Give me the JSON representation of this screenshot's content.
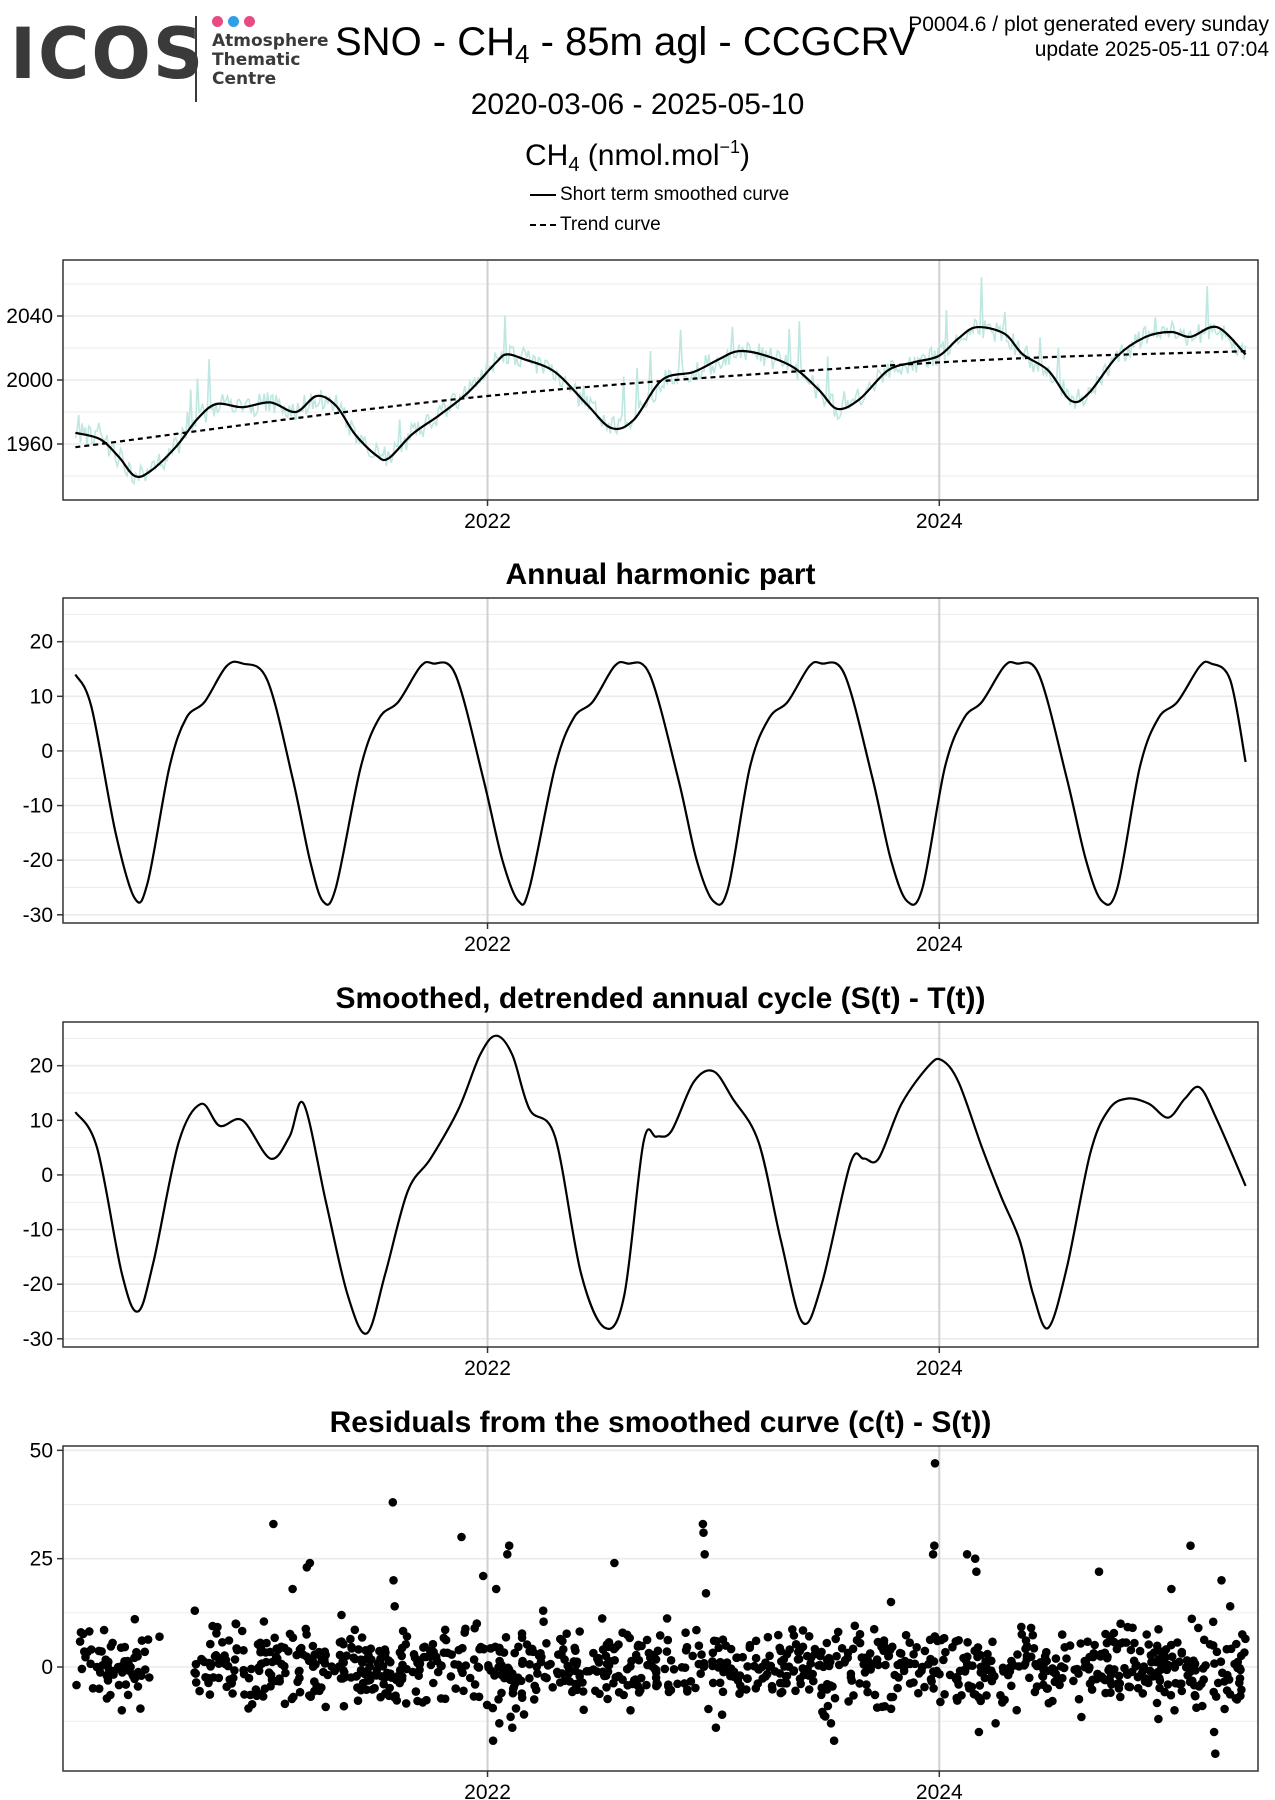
{
  "header": {
    "logo": {
      "word": "ICOS",
      "lines": [
        "Atmosphere",
        "Thematic",
        "Centre"
      ],
      "dot_colors": [
        "#e84a86",
        "#2f9fe8",
        "#e84a86"
      ]
    },
    "title_prefix": "SNO - CH",
    "title_sub": "4",
    "title_suffix": " - 85m agl - CCGCRV",
    "meta_line1": "P0004.6 / plot generated every sunday",
    "meta_line2": "update  2025-05-11 07:04",
    "date_range": "2020-03-06 - 2025-05-10",
    "ylabel_prefix": "CH",
    "ylabel_sub": "4",
    "ylabel_mid": " (nmol.mol",
    "ylabel_sup": "−1",
    "ylabel_end": ")",
    "legend": [
      {
        "label": "Short term smoothed curve",
        "style": "solid"
      },
      {
        "label": "Trend curve",
        "style": "dashed"
      }
    ]
  },
  "colors": {
    "observations": "#bde7e0",
    "curve": "#000000",
    "grid": "#ebebeb",
    "year_line": "#d0d0d0"
  },
  "chart_data": [
    {
      "type": "line",
      "title": "",
      "x_type": "date",
      "xlim": [
        "2020-02-15",
        "2025-05-30"
      ],
      "ylim": [
        1925,
        2075
      ],
      "yticks": [
        1960,
        2000,
        2040
      ],
      "xticks": [
        "2022-01-01",
        "2024-01-01"
      ],
      "xtick_labels": [
        "2022",
        "2024"
      ],
      "observation_band": true,
      "series": [
        {
          "name": "Short term smoothed curve",
          "style": "solid",
          "points": [
            [
              "2020-03-06",
              1967
            ],
            [
              "2020-04-15",
              1963
            ],
            [
              "2020-05-15",
              1952
            ],
            [
              "2020-06-10",
              1940
            ],
            [
              "2020-07-05",
              1943
            ],
            [
              "2020-08-15",
              1958
            ],
            [
              "2020-09-20",
              1976
            ],
            [
              "2020-10-20",
              1985
            ],
            [
              "2020-12-01",
              1983
            ],
            [
              "2021-01-15",
              1986
            ],
            [
              "2021-02-25",
              1980
            ],
            [
              "2021-03-31",
              1990
            ],
            [
              "2021-05-01",
              1984
            ],
            [
              "2021-06-01",
              1966
            ],
            [
              "2021-07-05",
              1953
            ],
            [
              "2021-07-25",
              1951
            ],
            [
              "2021-09-01",
              1966
            ],
            [
              "2021-10-15",
              1978
            ],
            [
              "2021-11-30",
              1992
            ],
            [
              "2022-01-15",
              2011
            ],
            [
              "2022-02-01",
              2016
            ],
            [
              "2022-03-01",
              2013
            ],
            [
              "2022-04-20",
              2005
            ],
            [
              "2022-06-10",
              1985
            ],
            [
              "2022-07-20",
              1970
            ],
            [
              "2022-08-25",
              1975
            ],
            [
              "2022-10-10",
              2000
            ],
            [
              "2022-11-30",
              2005
            ],
            [
              "2023-01-10",
              2013
            ],
            [
              "2023-02-10",
              2018
            ],
            [
              "2023-03-20",
              2016
            ],
            [
              "2023-05-10",
              2008
            ],
            [
              "2023-06-20",
              1994
            ],
            [
              "2023-07-20",
              1982
            ],
            [
              "2023-08-25",
              1988
            ],
            [
              "2023-10-10",
              2006
            ],
            [
              "2023-11-20",
              2011
            ],
            [
              "2023-12-31",
              2015
            ],
            [
              "2024-02-01",
              2026
            ],
            [
              "2024-03-01",
              2033
            ],
            [
              "2024-04-15",
              2029
            ],
            [
              "2024-05-15",
              2016
            ],
            [
              "2024-06-25",
              2006
            ],
            [
              "2024-08-01",
              1987
            ],
            [
              "2024-08-30",
              1992
            ],
            [
              "2024-10-15",
              2015
            ],
            [
              "2024-11-30",
              2027
            ],
            [
              "2025-01-10",
              2030
            ],
            [
              "2025-02-10",
              2027
            ],
            [
              "2025-03-25",
              2033
            ],
            [
              "2025-05-10",
              2016
            ]
          ]
        },
        {
          "name": "Trend curve",
          "style": "dashed",
          "points": [
            [
              "2020-03-06",
              1958
            ],
            [
              "2022-01-01",
              1990
            ],
            [
              "2024-01-01",
              2011
            ],
            [
              "2025-05-10",
              2018
            ]
          ]
        }
      ]
    },
    {
      "type": "line",
      "title": "Annual harmonic part",
      "x_type": "date",
      "xlim": [
        "2020-02-15",
        "2025-05-30"
      ],
      "ylim": [
        -31.5,
        28
      ],
      "yticks": [
        -30,
        -20,
        -10,
        0,
        10,
        20
      ],
      "xticks": [
        "2022-01-01",
        "2024-01-01"
      ],
      "xtick_labels": [
        "2022",
        "2024"
      ],
      "series": [
        {
          "style": "solid",
          "points": [
            [
              "2020-03-06",
              14
            ],
            [
              "2020-04-01",
              8
            ],
            [
              "2020-05-10",
              -15
            ],
            [
              "2020-06-10",
              -27
            ],
            [
              "2020-07-01",
              -24
            ],
            [
              "2020-08-05",
              -3
            ],
            [
              "2020-09-01",
              6
            ],
            [
              "2020-10-01",
              9
            ],
            [
              "2020-11-05",
              15.5
            ],
            [
              "2020-12-01",
              16
            ],
            [
              "2021-01-10",
              13
            ],
            [
              "2021-02-20",
              -5
            ],
            [
              "2021-03-20",
              -20
            ],
            [
              "2021-04-10",
              -27.5
            ],
            [
              "2021-05-01",
              -25
            ],
            [
              "2021-06-10",
              -3
            ],
            [
              "2021-07-10",
              6
            ],
            [
              "2021-08-10",
              9
            ],
            [
              "2021-09-15",
              15.5
            ],
            [
              "2021-10-05",
              16
            ],
            [
              "2021-11-10",
              14
            ],
            [
              "2021-12-25",
              -5
            ],
            [
              "2022-01-25",
              -20
            ],
            [
              "2022-02-20",
              -27.5
            ],
            [
              "2022-03-10",
              -25
            ],
            [
              "2022-04-20",
              -3
            ],
            [
              "2022-05-20",
              6
            ],
            [
              "2022-06-20",
              9
            ],
            [
              "2022-07-25",
              15.5
            ],
            [
              "2022-08-15",
              16
            ],
            [
              "2022-09-20",
              14
            ],
            [
              "2022-11-05",
              -5
            ],
            [
              "2022-12-05",
              -20
            ],
            [
              "2023-01-01",
              -27.5
            ],
            [
              "2023-01-25",
              -25
            ],
            [
              "2023-03-01",
              -3
            ],
            [
              "2023-04-01",
              6
            ],
            [
              "2023-05-01",
              9
            ],
            [
              "2023-06-05",
              15.5
            ],
            [
              "2023-06-25",
              16
            ],
            [
              "2023-08-01",
              14
            ],
            [
              "2023-09-15",
              -5
            ],
            [
              "2023-10-15",
              -20
            ],
            [
              "2023-11-10",
              -27.5
            ],
            [
              "2023-12-05",
              -25
            ],
            [
              "2024-01-10",
              -3
            ],
            [
              "2024-02-10",
              6
            ],
            [
              "2024-03-10",
              9
            ],
            [
              "2024-04-15",
              15.5
            ],
            [
              "2024-05-05",
              16
            ],
            [
              "2024-06-10",
              14
            ],
            [
              "2024-07-25",
              -5
            ],
            [
              "2024-08-25",
              -20
            ],
            [
              "2024-09-20",
              -27.5
            ],
            [
              "2024-10-15",
              -25
            ],
            [
              "2024-11-20",
              -3
            ],
            [
              "2024-12-20",
              6
            ],
            [
              "2025-01-20",
              9
            ],
            [
              "2025-02-25",
              15.5
            ],
            [
              "2025-03-15",
              16
            ],
            [
              "2025-04-15",
              13
            ],
            [
              "2025-05-10",
              -2
            ]
          ]
        }
      ]
    },
    {
      "type": "line",
      "title": "Smoothed, detrended annual cycle (S(t) - T(t))",
      "x_type": "date",
      "xlim": [
        "2020-02-15",
        "2025-05-30"
      ],
      "ylim": [
        -31.5,
        28
      ],
      "yticks": [
        -30,
        -20,
        -10,
        0,
        10,
        20
      ],
      "xticks": [
        "2022-01-01",
        "2024-01-01"
      ],
      "xtick_labels": [
        "2022",
        "2024"
      ],
      "series": [
        {
          "style": "solid",
          "points": [
            [
              "2020-03-06",
              11.5
            ],
            [
              "2020-04-10",
              5
            ],
            [
              "2020-05-20",
              -18
            ],
            [
              "2020-06-15",
              -25
            ],
            [
              "2020-07-10",
              -16
            ],
            [
              "2020-08-20",
              6
            ],
            [
              "2020-09-25",
              13
            ],
            [
              "2020-10-25",
              9
            ],
            [
              "2020-12-01",
              10
            ],
            [
              "2021-01-15",
              3
            ],
            [
              "2021-02-15",
              7
            ],
            [
              "2021-03-10",
              13
            ],
            [
              "2021-04-15",
              -5
            ],
            [
              "2021-05-20",
              -22
            ],
            [
              "2021-06-20",
              -29
            ],
            [
              "2021-07-20",
              -18
            ],
            [
              "2021-08-25",
              -3
            ],
            [
              "2021-10-01",
              3
            ],
            [
              "2021-11-15",
              12
            ],
            [
              "2021-12-20",
              22
            ],
            [
              "2022-01-15",
              25.5
            ],
            [
              "2022-02-10",
              22
            ],
            [
              "2022-03-10",
              12
            ],
            [
              "2022-04-20",
              7
            ],
            [
              "2022-06-01",
              -18
            ],
            [
              "2022-07-10",
              -28
            ],
            [
              "2022-08-10",
              -22
            ],
            [
              "2022-09-10",
              6
            ],
            [
              "2022-10-01",
              7
            ],
            [
              "2022-10-25",
              8
            ],
            [
              "2022-11-30",
              17
            ],
            [
              "2023-01-01",
              19
            ],
            [
              "2023-02-01",
              14
            ],
            [
              "2023-03-15",
              6
            ],
            [
              "2023-04-20",
              -12
            ],
            [
              "2023-05-25",
              -27
            ],
            [
              "2023-06-25",
              -20
            ],
            [
              "2023-08-10",
              2
            ],
            [
              "2023-09-01",
              3
            ],
            [
              "2023-09-25",
              3
            ],
            [
              "2023-11-01",
              13
            ],
            [
              "2023-12-15",
              20
            ],
            [
              "2024-01-05",
              21
            ],
            [
              "2024-02-01",
              17
            ],
            [
              "2024-03-10",
              5
            ],
            [
              "2024-04-10",
              -4
            ],
            [
              "2024-05-10",
              -12
            ],
            [
              "2024-06-01",
              -22
            ],
            [
              "2024-06-25",
              -28
            ],
            [
              "2024-07-25",
              -17
            ],
            [
              "2024-09-01",
              4
            ],
            [
              "2024-10-01",
              12
            ],
            [
              "2024-11-01",
              14
            ],
            [
              "2024-12-05",
              13
            ],
            [
              "2025-01-05",
              10.5
            ],
            [
              "2025-02-01",
              14
            ],
            [
              "2025-02-25",
              16
            ],
            [
              "2025-03-25",
              10
            ],
            [
              "2025-05-10",
              -2
            ]
          ]
        }
      ]
    },
    {
      "type": "scatter",
      "title": "Residuals from the smoothed curve (c(t) - S(t))",
      "x_type": "date",
      "xlim": [
        "2020-02-15",
        "2025-05-30"
      ],
      "ylim": [
        -24,
        51
      ],
      "yticks": [
        0,
        25,
        50
      ],
      "xticks": [
        "2022-01-01",
        "2024-01-01"
      ],
      "xtick_labels": [
        "2022",
        "2024"
      ],
      "outliers": [
        [
          "2020-03-15",
          8
        ],
        [
          "2020-05-20",
          -10
        ],
        [
          "2020-07-20",
          7
        ],
        [
          "2020-09-15",
          13
        ],
        [
          "2020-11-20",
          10
        ],
        [
          "2021-01-20",
          33
        ],
        [
          "2021-02-20",
          18
        ],
        [
          "2021-03-15",
          23
        ],
        [
          "2021-03-20",
          24
        ],
        [
          "2021-05-10",
          12
        ],
        [
          "2021-08-01",
          38
        ],
        [
          "2021-08-02",
          20
        ],
        [
          "2021-08-04",
          14
        ],
        [
          "2021-11-20",
          30
        ],
        [
          "2021-12-25",
          21
        ],
        [
          "2022-01-10",
          -17
        ],
        [
          "2022-01-20",
          -13
        ],
        [
          "2022-02-05",
          28
        ],
        [
          "2022-02-02",
          26
        ],
        [
          "2022-01-15",
          18
        ],
        [
          "2022-02-10",
          -14
        ],
        [
          "2022-04-01",
          13
        ],
        [
          "2022-07-25",
          24
        ],
        [
          "2022-08-20",
          -10
        ],
        [
          "2022-12-15",
          33
        ],
        [
          "2022-12-16",
          31
        ],
        [
          "2022-12-18",
          26
        ],
        [
          "2022-12-20",
          17
        ],
        [
          "2023-01-05",
          -14
        ],
        [
          "2023-01-15",
          -11
        ],
        [
          "2023-07-15",
          -17
        ],
        [
          "2023-07-10",
          -13
        ],
        [
          "2023-07-05",
          -9
        ],
        [
          "2023-10-15",
          15
        ],
        [
          "2023-12-25",
          47
        ],
        [
          "2023-12-24",
          28
        ],
        [
          "2023-12-22",
          26
        ],
        [
          "2024-02-15",
          26
        ],
        [
          "2024-02-28",
          25
        ],
        [
          "2024-03-01",
          22
        ],
        [
          "2024-03-05",
          -15
        ],
        [
          "2024-04-01",
          -13
        ],
        [
          "2024-09-15",
          22
        ],
        [
          "2024-10-20",
          10
        ],
        [
          "2024-12-20",
          -12
        ],
        [
          "2025-01-10",
          18
        ],
        [
          "2025-01-15",
          -10
        ],
        [
          "2025-02-10",
          28
        ],
        [
          "2025-03-01",
          -9
        ],
        [
          "2025-03-20",
          -15
        ],
        [
          "2025-03-22",
          -20
        ],
        [
          "2025-04-01",
          20
        ],
        [
          "2025-04-15",
          14
        ]
      ]
    }
  ]
}
